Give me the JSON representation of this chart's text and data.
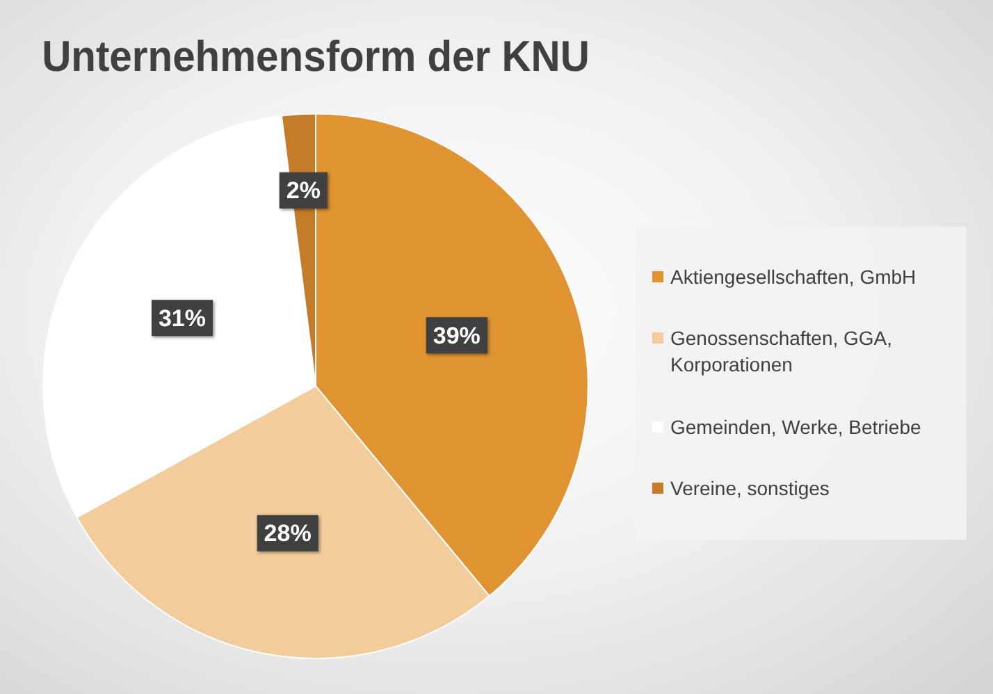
{
  "chart_data": {
    "type": "pie",
    "title": "Unternehmensform der KNU",
    "categories": [
      "Aktiengesellschaften, GmbH",
      "Genossenschaften, GGA, Korporationen",
      "Gemeinden, Werke, Betriebe",
      "Vereine, sonstiges"
    ],
    "values": [
      39,
      28,
      31,
      2
    ],
    "colors": [
      "#df9431",
      "#f2cc9b",
      "#ffffff",
      "#c27c2a"
    ],
    "value_labels": [
      "39%",
      "28%",
      "31%",
      "2%"
    ],
    "legend": "right"
  }
}
